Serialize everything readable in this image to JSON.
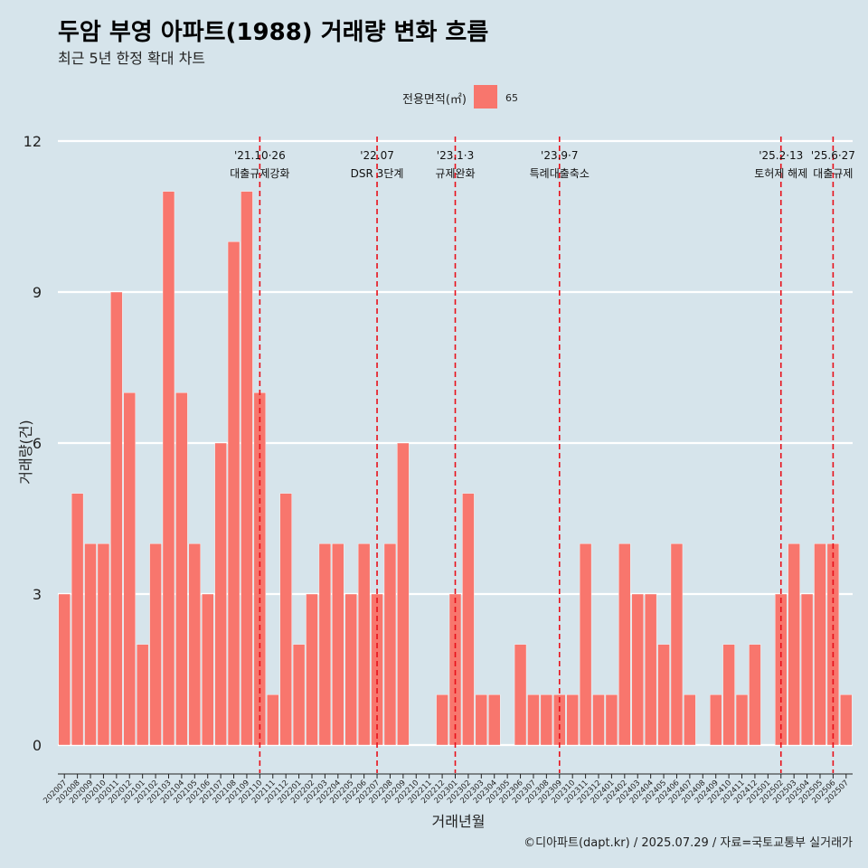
{
  "chart_data": {
    "type": "bar",
    "title": "두암 부영 아파트(1988) 거래량 변화 흐름",
    "subtitle": "최근 5년 한정 확대 차트",
    "xlabel": "거래년월",
    "ylabel": "거래량(건)",
    "ylim": [
      0,
      12
    ],
    "yticks": [
      0,
      3,
      6,
      9,
      12
    ],
    "legend": {
      "title": "전용면적(㎡)",
      "position": "top",
      "entries": [
        {
          "label": "65",
          "color": "#F8766D"
        }
      ]
    },
    "grid": true,
    "categories": [
      "202007",
      "202008",
      "202009",
      "202010",
      "202011",
      "202012",
      "202101",
      "202102",
      "202103",
      "202104",
      "202105",
      "202106",
      "202107",
      "202108",
      "202109",
      "202110",
      "202111",
      "202112",
      "202201",
      "202202",
      "202203",
      "202204",
      "202205",
      "202206",
      "202207",
      "202208",
      "202209",
      "202210",
      "202211",
      "202212",
      "202301",
      "202302",
      "202303",
      "202304",
      "202305",
      "202306",
      "202307",
      "202308",
      "202309",
      "202310",
      "202311",
      "202312",
      "202401",
      "202402",
      "202403",
      "202404",
      "202405",
      "202406",
      "202407",
      "202408",
      "202409",
      "202410",
      "202411",
      "202412",
      "202501",
      "202502",
      "202503",
      "202504",
      "202505",
      "202506",
      "202507"
    ],
    "series": [
      {
        "name": "65",
        "color": "#F8766D",
        "values": [
          3,
          5,
          4,
          4,
          9,
          7,
          2,
          4,
          11,
          7,
          4,
          3,
          6,
          10,
          11,
          7,
          1,
          5,
          2,
          3,
          4,
          4,
          3,
          4,
          3,
          4,
          6,
          0,
          0,
          1,
          3,
          5,
          1,
          1,
          0,
          2,
          1,
          1,
          1,
          1,
          4,
          1,
          1,
          4,
          3,
          3,
          2,
          4,
          1,
          0,
          1,
          2,
          1,
          2,
          0,
          3,
          4,
          3,
          4,
          4,
          1
        ]
      }
    ],
    "annotations": [
      {
        "at": "202110",
        "date": "'21.10·26",
        "label": "대출규제강화"
      },
      {
        "at": "202207",
        "date": "'22.07",
        "label": "DSR 3단계"
      },
      {
        "at": "202301",
        "date": "'23.1·3",
        "label": "규제완화"
      },
      {
        "at": "202309",
        "date": "'23.9·7",
        "label": "특례대출축소"
      },
      {
        "at": "202502",
        "date": "'25.2·13",
        "label": "토허제 해제"
      },
      {
        "at": "202506",
        "date": "'25.6·27",
        "label": "대출규제"
      }
    ],
    "caption": "©디아파트(dapt.kr) / 2025.07.29 / 자료=국토교통부 실거래가"
  }
}
